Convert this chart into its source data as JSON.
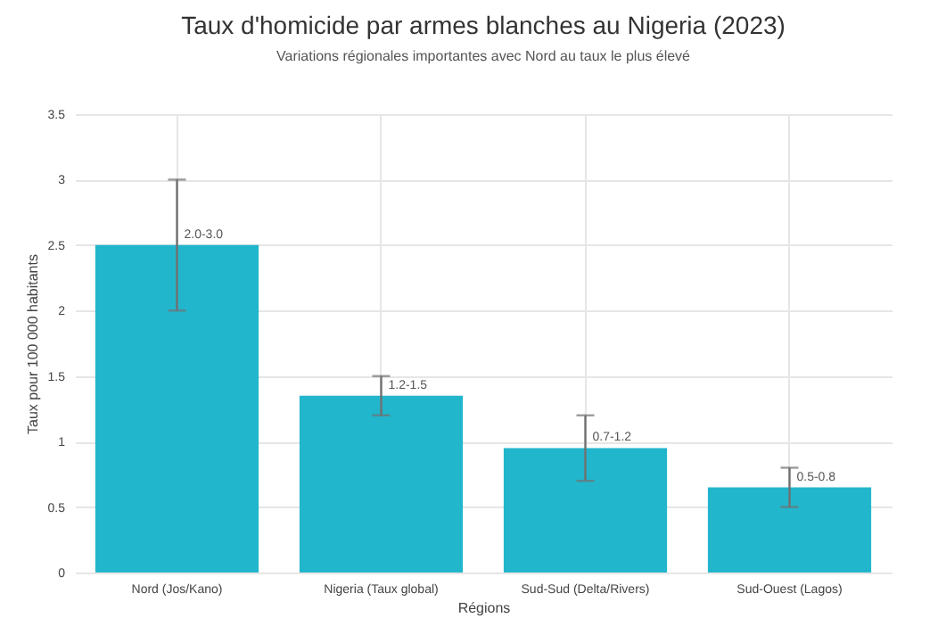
{
  "chart_data": {
    "type": "bar",
    "title": "Taux d'homicide par armes blanches au Nigeria (2023)",
    "subtitle": "Variations régionales importantes avec Nord au taux le plus élevé",
    "xlabel": "Régions",
    "ylabel": "Taux pour 100 000 habitants",
    "categories": [
      "Nord (Jos/Kano)",
      "Nigeria (Taux global)",
      "Sud-Sud (Delta/Rivers)",
      "Sud-Ouest (Lagos)"
    ],
    "values": [
      2.5,
      1.35,
      0.95,
      0.65
    ],
    "errors": [
      [
        2.0,
        3.0
      ],
      [
        1.2,
        1.5
      ],
      [
        0.7,
        1.2
      ],
      [
        0.5,
        0.8
      ]
    ],
    "value_labels": [
      "2.0-3.0",
      "1.2-1.5",
      "0.7-1.2",
      "0.5-0.8"
    ],
    "color": "#22b6cc",
    "ylim": [
      0,
      3.5
    ],
    "yticks": [
      0,
      0.5,
      1,
      1.5,
      2,
      2.5,
      3,
      3.5
    ],
    "grid": true
  }
}
